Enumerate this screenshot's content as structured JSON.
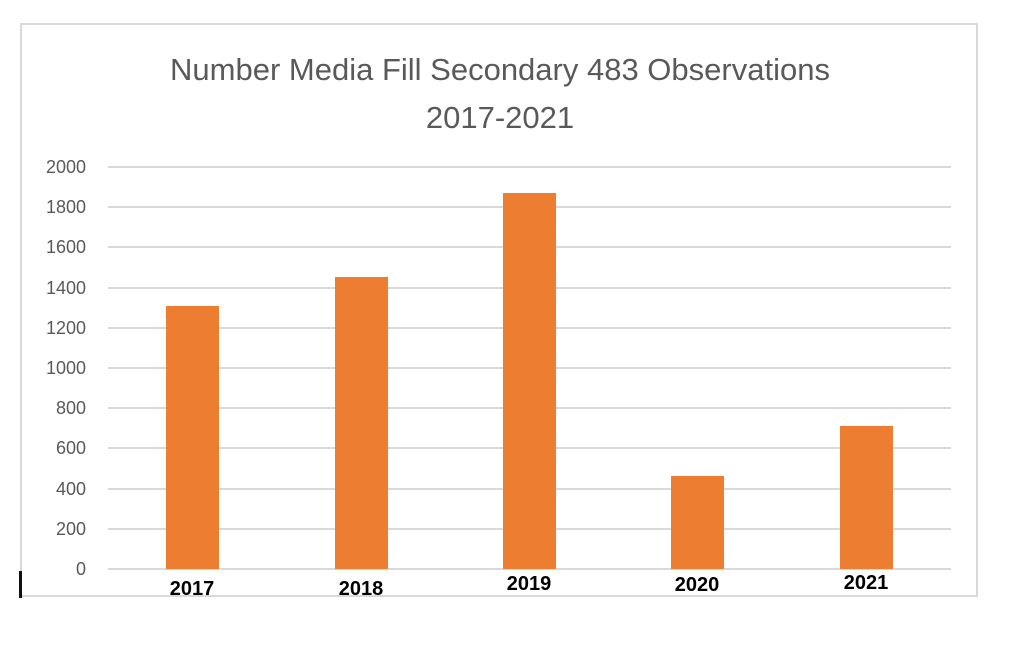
{
  "chart": {
    "title_line1": "Number Media Fill Secondary 483 Observations",
    "title_line2": "2017-2021",
    "bar_color": "#ED7D31",
    "grid_color": "#D9D9D9",
    "y_ticks": [
      "2000",
      "1800",
      "1600",
      "1400",
      "1200",
      "1000",
      "800",
      "600",
      "400",
      "200",
      "0"
    ],
    "x_labels": [
      "2017",
      "2018",
      "2019",
      "2020",
      "2021"
    ]
  },
  "chart_data": {
    "type": "bar",
    "title": "Number Media Fill Secondary 483 Observations 2017-2021",
    "categories": [
      "2017",
      "2018",
      "2019",
      "2020",
      "2021"
    ],
    "values": [
      1310,
      1455,
      1870,
      465,
      710
    ],
    "xlabel": "",
    "ylabel": "",
    "ylim": [
      0,
      2000
    ],
    "y_tick_step": 200,
    "grid": true,
    "legend": "none",
    "series": [
      {
        "name": "Observations",
        "color": "#ED7D31",
        "values": [
          1310,
          1455,
          1870,
          465,
          710
        ]
      }
    ]
  }
}
